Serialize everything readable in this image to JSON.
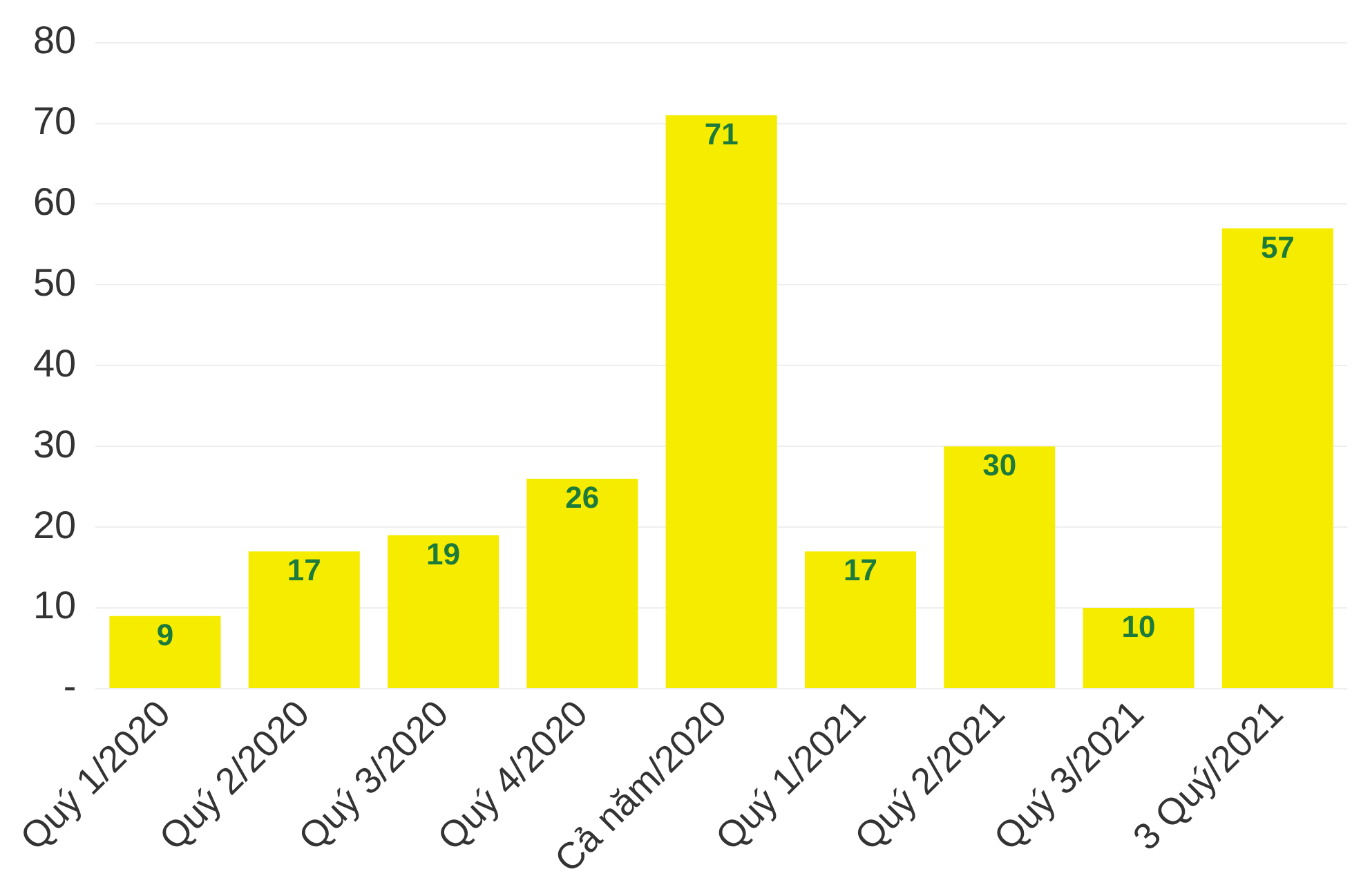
{
  "chart_data": {
    "type": "bar",
    "categories": [
      "Quý 1/2020",
      "Quý 2/2020",
      "Quý 3/2020",
      "Quý 4/2020",
      "Cả năm/2020",
      "Quý 1/2021",
      "Quý 2/2021",
      "Quý 3/2021",
      "3 Quý/2021"
    ],
    "values": [
      9,
      17,
      19,
      26,
      71,
      17,
      30,
      10,
      57
    ],
    "color": "#f5ec00",
    "ylim": [
      0,
      80
    ],
    "yticks": [
      {
        "value": 0,
        "label": "-"
      },
      10,
      20,
      30,
      40,
      50,
      60,
      70,
      80
    ],
    "grid": "y",
    "data_labels": true,
    "legend": false
  }
}
